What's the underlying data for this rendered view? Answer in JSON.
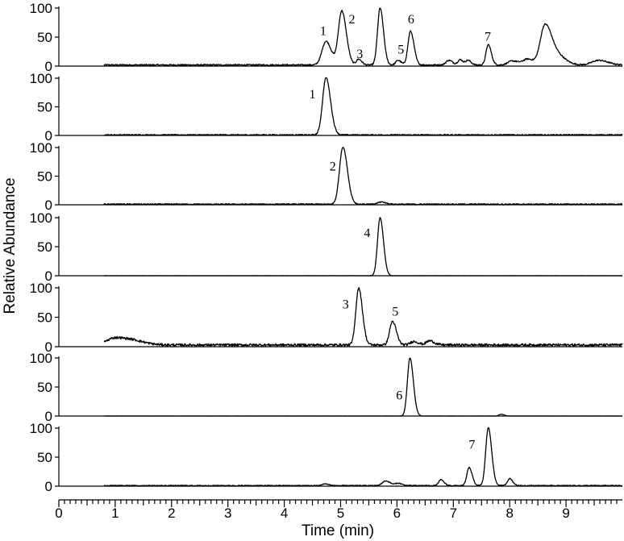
{
  "chart_data": {
    "type": "line",
    "xlabel": "Time (min)",
    "ylabel": "Relative Abundance",
    "xlim": [
      0,
      10
    ],
    "x_ticks": [
      "0",
      "1",
      "2",
      "3",
      "4",
      "5",
      "6",
      "7",
      "8",
      "9"
    ],
    "y_ticks": [
      "0",
      "50",
      "100"
    ],
    "ylim": [
      0,
      100
    ],
    "panels": [
      {
        "peaks": [
          {
            "t": 4.74,
            "h": 41,
            "w": 0.07
          },
          {
            "t": 5.02,
            "h": 93,
            "w": 0.06
          },
          {
            "t": 5.32,
            "h": 10,
            "w": 0.04
          },
          {
            "t": 5.7,
            "h": 98,
            "w": 0.045
          },
          {
            "t": 6.02,
            "h": 8,
            "w": 0.04
          },
          {
            "t": 6.24,
            "h": 58,
            "w": 0.045
          },
          {
            "t": 6.92,
            "h": 8,
            "w": 0.05
          },
          {
            "t": 7.12,
            "h": 9,
            "w": 0.04
          },
          {
            "t": 7.26,
            "h": 8,
            "w": 0.04
          },
          {
            "t": 7.62,
            "h": 35,
            "w": 0.04
          },
          {
            "t": 8.05,
            "h": 7,
            "w": 0.08
          },
          {
            "t": 8.32,
            "h": 10,
            "w": 0.08
          },
          {
            "t": 8.62,
            "h": 63,
            "w": 0.08
          },
          {
            "t": 8.8,
            "h": 20,
            "w": 0.12
          },
          {
            "t": 9.58,
            "h": 8,
            "w": 0.12
          }
        ],
        "baseline": 2,
        "noise": 1.2,
        "start": 0.8,
        "labels": [
          {
            "text": "1",
            "t": 4.69,
            "y": 62
          },
          {
            "text": "2",
            "t": 5.2,
            "y": 82
          },
          {
            "text": "3",
            "t": 5.34,
            "y": 22
          },
          {
            "text": "5",
            "t": 6.07,
            "y": 30
          },
          {
            "text": "6",
            "t": 6.25,
            "y": 82
          },
          {
            "text": "7",
            "t": 7.61,
            "y": 52
          }
        ]
      },
      {
        "peaks": [
          {
            "t": 4.74,
            "h": 100,
            "w": 0.06
          }
        ],
        "baseline": 1,
        "noise": 1.0,
        "start": 0.8,
        "labels": [
          {
            "text": "1",
            "t": 4.5,
            "y": 73
          }
        ]
      },
      {
        "peaks": [
          {
            "t": 5.04,
            "h": 100,
            "w": 0.06
          },
          {
            "t": 5.72,
            "h": 4,
            "w": 0.06
          }
        ],
        "baseline": 1,
        "noise": 1.0,
        "start": 0.8,
        "labels": [
          {
            "text": "2",
            "t": 4.86,
            "y": 68
          }
        ]
      },
      {
        "peaks": [
          {
            "t": 5.7,
            "h": 100,
            "w": 0.045
          }
        ],
        "baseline": 0,
        "noise": 0.2,
        "start": 0.8,
        "labels": [
          {
            "text": "4",
            "t": 5.47,
            "y": 75
          }
        ]
      },
      {
        "peaks": [
          {
            "t": 1.0,
            "h": 12,
            "w": 0.15
          },
          {
            "t": 1.35,
            "h": 6,
            "w": 0.15
          },
          {
            "t": 5.32,
            "h": 97,
            "w": 0.05
          },
          {
            "t": 5.92,
            "h": 40,
            "w": 0.05
          },
          {
            "t": 6.3,
            "h": 6,
            "w": 0.06
          },
          {
            "t": 6.58,
            "h": 7,
            "w": 0.06
          }
        ],
        "baseline": 3,
        "noise": 2.0,
        "start": 0.8,
        "labels": [
          {
            "text": "3",
            "t": 5.09,
            "y": 73
          },
          {
            "text": "5",
            "t": 5.97,
            "y": 61
          }
        ]
      },
      {
        "peaks": [
          {
            "t": 6.23,
            "h": 100,
            "w": 0.045
          },
          {
            "t": 7.85,
            "h": 3,
            "w": 0.04
          }
        ],
        "baseline": 0,
        "noise": 0.2,
        "start": 0.8,
        "labels": [
          {
            "text": "6",
            "t": 6.04,
            "y": 37
          }
        ]
      },
      {
        "peaks": [
          {
            "t": 4.72,
            "h": 3,
            "w": 0.05
          },
          {
            "t": 5.8,
            "h": 8,
            "w": 0.06
          },
          {
            "t": 6.02,
            "h": 4,
            "w": 0.05
          },
          {
            "t": 6.78,
            "h": 10,
            "w": 0.04
          },
          {
            "t": 7.28,
            "h": 31,
            "w": 0.04
          },
          {
            "t": 7.62,
            "h": 100,
            "w": 0.045
          },
          {
            "t": 8.0,
            "h": 12,
            "w": 0.04
          }
        ],
        "baseline": 1,
        "noise": 0.8,
        "start": 0.8,
        "labels": [
          {
            "text": "7",
            "t": 7.33,
            "y": 73
          }
        ]
      }
    ]
  }
}
